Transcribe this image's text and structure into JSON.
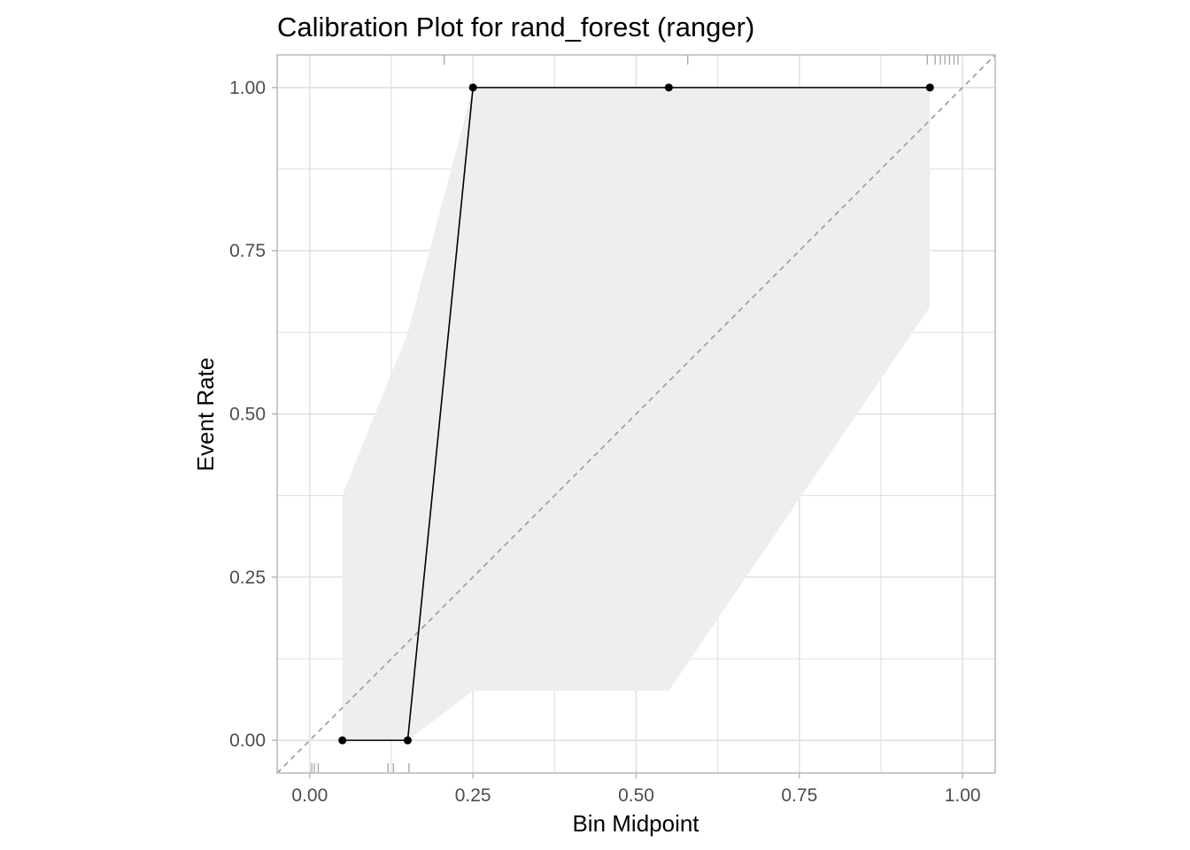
{
  "chart_data": {
    "type": "line",
    "title": "Calibration Plot for rand_forest (ranger)",
    "xlabel": "Bin Midpoint",
    "ylabel": "Event Rate",
    "xlim": [
      -0.05,
      1.05
    ],
    "ylim": [
      -0.05,
      1.05
    ],
    "grid": true,
    "legend": "none",
    "x_ticks": [
      0.0,
      0.25,
      0.5,
      0.75,
      1.0
    ],
    "x_tick_labels": [
      "0.00",
      "0.25",
      "0.50",
      "0.75",
      "1.00"
    ],
    "y_ticks": [
      0.0,
      0.25,
      0.5,
      0.75,
      1.0
    ],
    "y_tick_labels": [
      "0.00",
      "0.25",
      "0.50",
      "0.75",
      "1.00"
    ],
    "series": [
      {
        "x": [
          0.05,
          0.15,
          0.25,
          0.55,
          0.95
        ],
        "y": [
          0.0,
          0.0,
          1.0,
          1.0,
          1.0
        ],
        "color": "#000000"
      }
    ],
    "confidence_band": {
      "x": [
        0.05,
        0.15,
        0.25,
        0.55,
        0.95
      ],
      "lower": [
        0.0,
        0.0,
        0.076,
        0.076,
        0.664
      ],
      "upper": [
        0.376,
        0.624,
        1.0,
        1.0,
        1.0
      ],
      "color": "#eeeeee"
    },
    "reference_line": {
      "x": [
        -0.05,
        1.05
      ],
      "y": [
        -0.05,
        1.05
      ],
      "style": "dashed",
      "color": "#999999"
    },
    "rug_bottom_x": [
      0.003,
      0.007,
      0.013,
      0.12,
      0.128,
      0.152
    ],
    "rug_top_x": [
      0.206,
      0.579,
      0.946,
      0.958,
      0.966,
      0.973,
      0.98,
      0.987,
      0.993
    ],
    "colors": {
      "panel_border": "#b3b3b3",
      "grid": "#dedede",
      "rug": "#aaaaaa"
    }
  }
}
